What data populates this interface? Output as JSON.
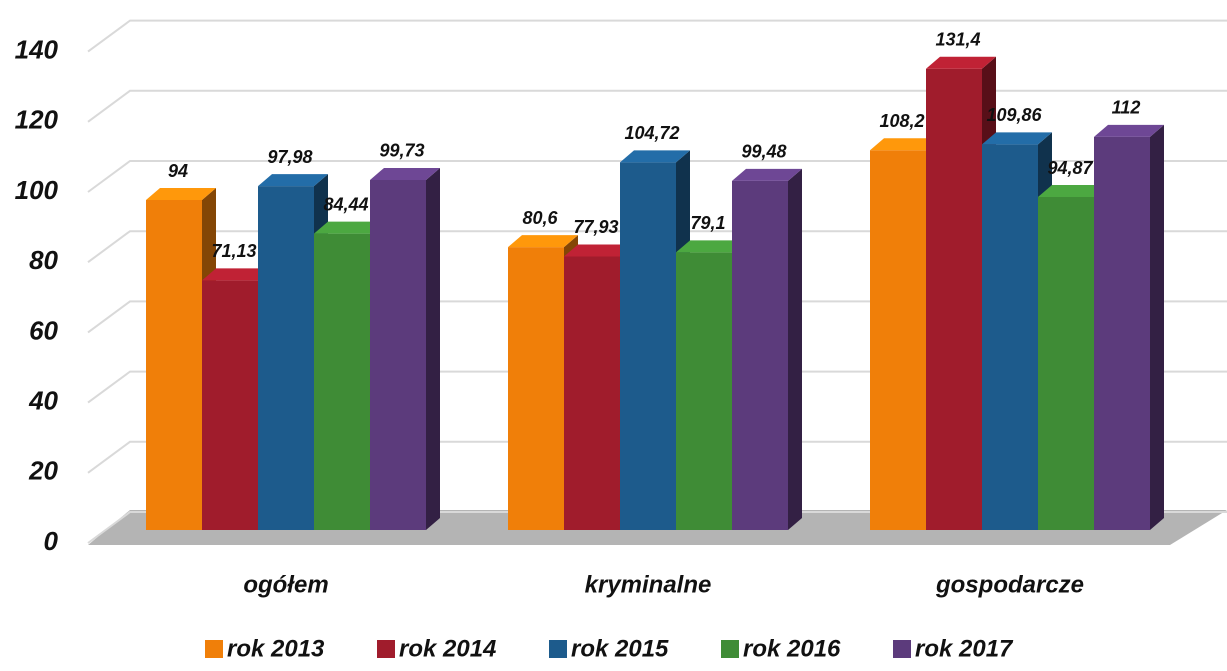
{
  "chart_data": {
    "type": "bar3d",
    "categories": [
      "ogółem",
      "kryminalne",
      "gospodarcze"
    ],
    "series": [
      {
        "name": "rok 2013",
        "color": "#f07f09",
        "values": [
          94,
          80.6,
          108.2
        ],
        "value_labels": [
          "94",
          "80,6",
          "108,2"
        ]
      },
      {
        "name": "rok 2014",
        "color": "#a01c2c",
        "values": [
          71.13,
          77.93,
          131.4
        ],
        "value_labels": [
          "71,13",
          "77,93",
          "131,4"
        ]
      },
      {
        "name": "rok 2015",
        "color": "#1d5b8c",
        "values": [
          97.98,
          104.72,
          109.86
        ],
        "value_labels": [
          "97,98",
          "104,72",
          "109,86"
        ]
      },
      {
        "name": "rok 2016",
        "color": "#3f8c36",
        "values": [
          84.44,
          79.1,
          94.87
        ],
        "value_labels": [
          "84,44",
          "79,1",
          "94,87"
        ]
      },
      {
        "name": "rok 2017",
        "color": "#5c3b7c",
        "values": [
          99.73,
          99.48,
          112
        ],
        "value_labels": [
          "99,73",
          "99,48",
          "112"
        ]
      }
    ],
    "ylim": [
      0,
      150
    ],
    "yticks": [
      0,
      20,
      40,
      60,
      80,
      100,
      120,
      140
    ],
    "grid": true,
    "legend": "bottom"
  }
}
